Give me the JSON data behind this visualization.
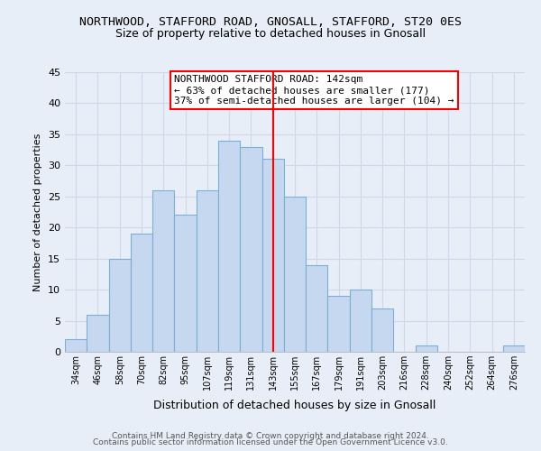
{
  "title": "NORTHWOOD, STAFFORD ROAD, GNOSALL, STAFFORD, ST20 0ES",
  "subtitle": "Size of property relative to detached houses in Gnosall",
  "xlabel": "Distribution of detached houses by size in Gnosall",
  "ylabel": "Number of detached properties",
  "footer_lines": [
    "Contains HM Land Registry data © Crown copyright and database right 2024.",
    "Contains public sector information licensed under the Open Government Licence v3.0."
  ],
  "bin_labels": [
    "34sqm",
    "46sqm",
    "58sqm",
    "70sqm",
    "82sqm",
    "95sqm",
    "107sqm",
    "119sqm",
    "131sqm",
    "143sqm",
    "155sqm",
    "167sqm",
    "179sqm",
    "191sqm",
    "203sqm",
    "216sqm",
    "228sqm",
    "240sqm",
    "252sqm",
    "264sqm",
    "276sqm"
  ],
  "bar_values": [
    2,
    6,
    15,
    19,
    26,
    22,
    26,
    34,
    33,
    31,
    25,
    14,
    9,
    10,
    7,
    0,
    1,
    0,
    0,
    0,
    1
  ],
  "bar_color": "#c5d8f0",
  "bar_edge_color": "#7bafd4",
  "reference_line_x_label": "143sqm",
  "reference_line_color": "red",
  "annotation_box_text": "NORTHWOOD STAFFORD ROAD: 142sqm\n← 63% of detached houses are smaller (177)\n37% of semi-detached houses are larger (104) →",
  "annotation_box_facecolor": "white",
  "annotation_box_edgecolor": "red",
  "ylim": [
    0,
    45
  ],
  "yticks": [
    0,
    5,
    10,
    15,
    20,
    25,
    30,
    35,
    40,
    45
  ],
  "grid_color": "#d0d8e8",
  "background_color": "#e8eef8",
  "title_fontsize": 9.5,
  "subtitle_fontsize": 9,
  "annotation_fontsize": 8,
  "ylabel_fontsize": 8,
  "xlabel_fontsize": 9,
  "footer_fontsize": 6.5
}
